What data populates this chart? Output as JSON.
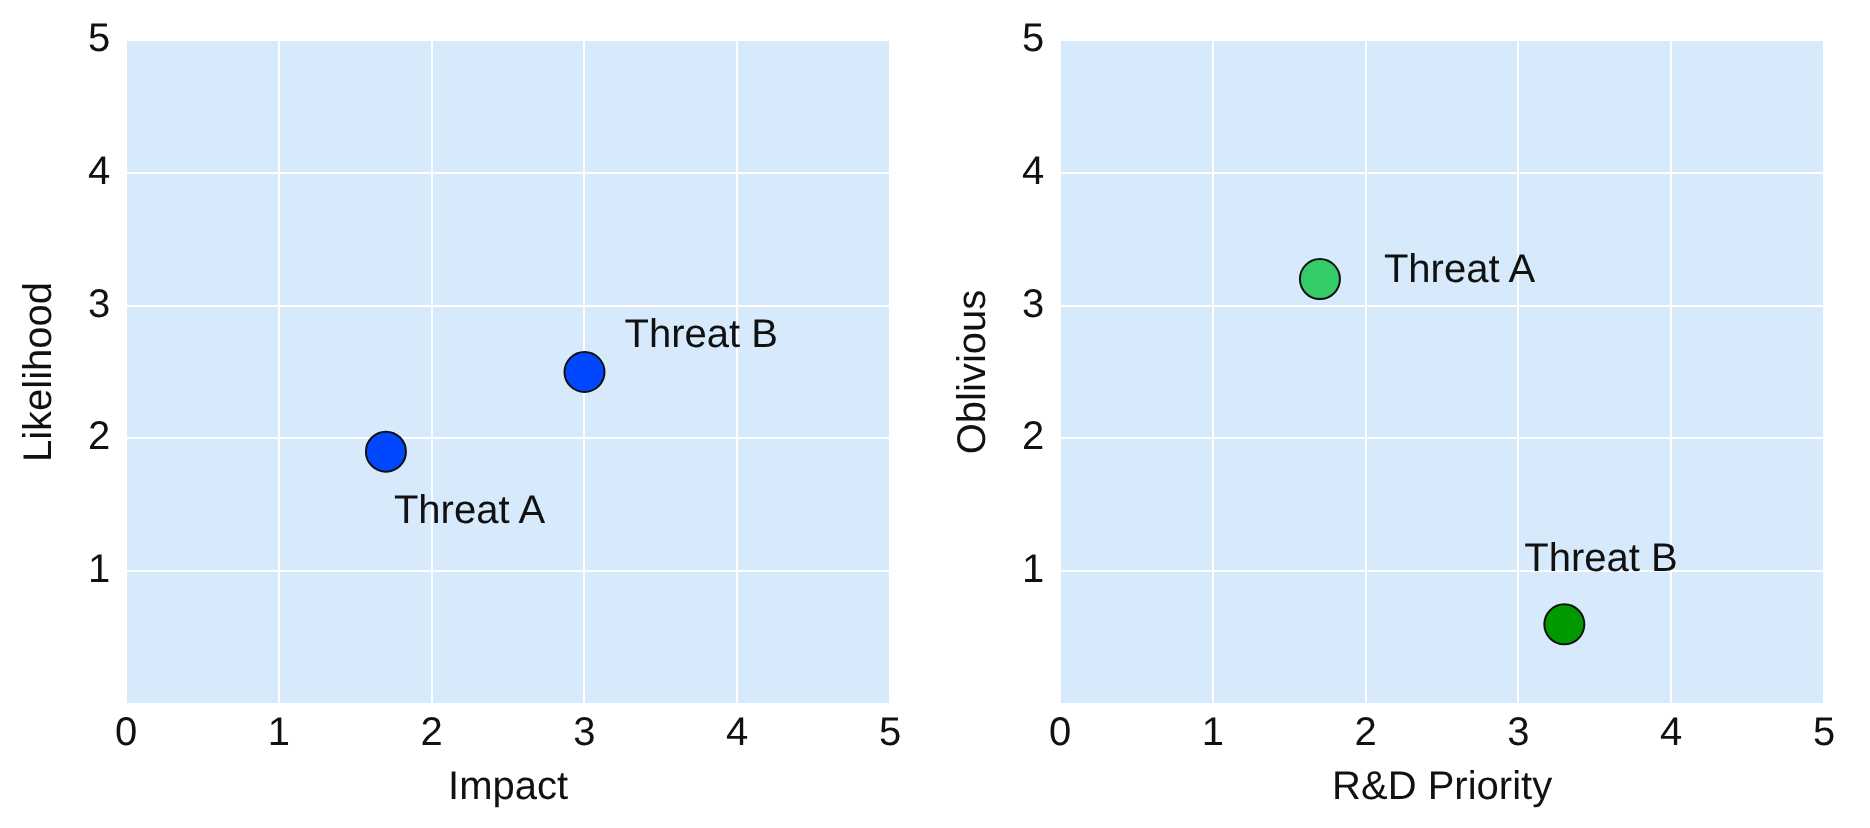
{
  "chart_data": [
    {
      "type": "scatter",
      "xlabel": "Impact",
      "ylabel": "Likelihood",
      "xlim": [
        0,
        5
      ],
      "ylim": [
        0,
        5
      ],
      "xticks": [
        0,
        1,
        2,
        3,
        4,
        5
      ],
      "yticks": [
        {
          "value": 0,
          "label": null
        },
        1,
        2,
        3,
        4,
        5
      ],
      "grid": true,
      "legend": false,
      "marker": "circle",
      "series": [
        {
          "name": "Threat A",
          "color": "#0047ff",
          "x": [
            1.7
          ],
          "values": [
            1.9
          ]
        },
        {
          "name": "Threat B",
          "color": "#0047ff",
          "x": [
            3.0
          ],
          "values": [
            2.5
          ]
        }
      ]
    },
    {
      "type": "scatter",
      "xlabel": "R&D Priority",
      "ylabel": "Oblivious",
      "xlim": [
        0,
        5
      ],
      "ylim": [
        0,
        5
      ],
      "xticks": [
        0,
        1,
        2,
        3,
        4,
        5
      ],
      "yticks": [
        {
          "value": 0,
          "label": null
        },
        1,
        2,
        3,
        4,
        5
      ],
      "grid": true,
      "legend": false,
      "marker": "circle",
      "series": [
        {
          "name": "Threat A",
          "color": "#33cc66",
          "x": [
            1.7
          ],
          "values": [
            3.2
          ]
        },
        {
          "name": "Threat B",
          "color": "#009900",
          "x": [
            3.3
          ],
          "values": [
            0.6
          ]
        }
      ]
    }
  ]
}
